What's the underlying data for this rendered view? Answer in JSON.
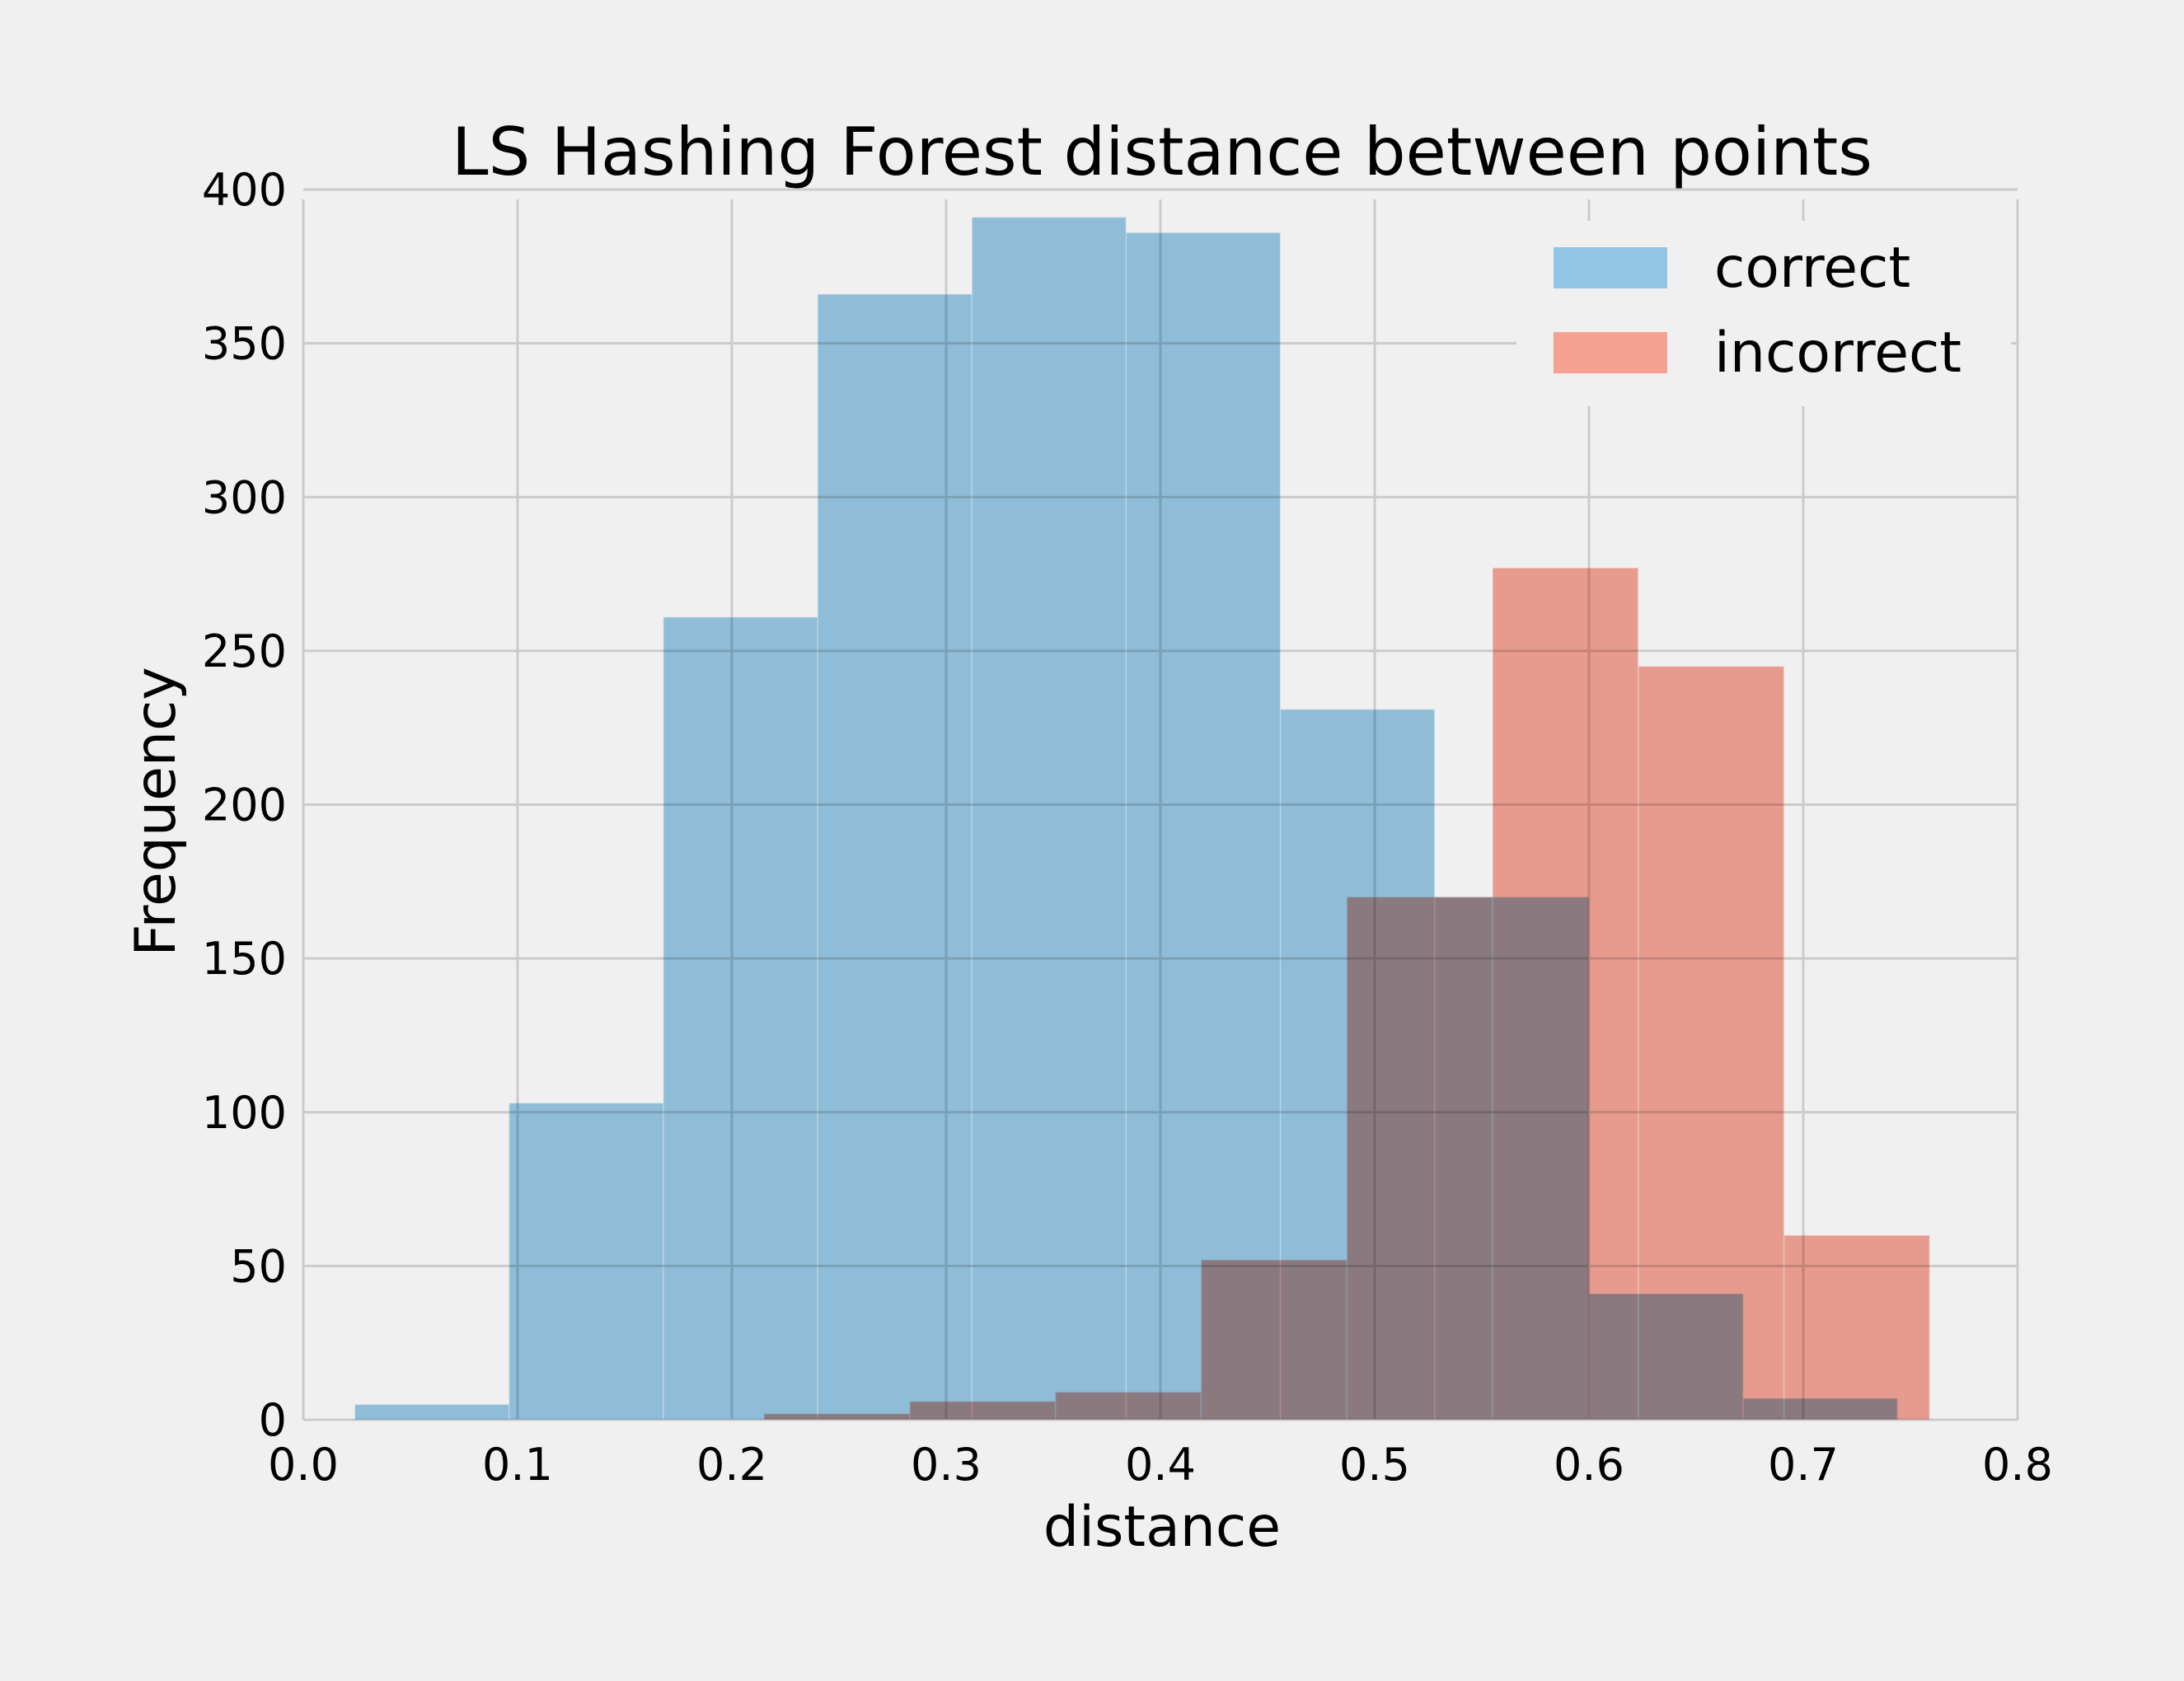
{
  "chart_data": {
    "type": "bar",
    "title": "LS Hashing Forest distance between points",
    "xlabel": "distance",
    "ylabel": "Frequency",
    "xlim": [
      0.0,
      0.8
    ],
    "ylim": [
      0,
      400
    ],
    "xticks": [
      "0.0",
      "0.1",
      "0.2",
      "0.3",
      "0.4",
      "0.5",
      "0.6",
      "0.7",
      "0.8"
    ],
    "yticks": [
      "0",
      "50",
      "100",
      "150",
      "200",
      "250",
      "300",
      "350",
      "400"
    ],
    "grid": true,
    "legend_position": "top-right",
    "series": [
      {
        "name": "correct",
        "color": "#92c6e4",
        "bin_edges": [
          0.024,
          0.096,
          0.168,
          0.24,
          0.312,
          0.384,
          0.456,
          0.528,
          0.6,
          0.672,
          0.744
        ],
        "values": [
          5,
          103,
          261,
          366,
          391,
          386,
          231,
          170,
          41,
          7
        ]
      },
      {
        "name": "incorrect",
        "color": "#f6a091",
        "bin_edges": [
          0.215,
          0.283,
          0.351,
          0.419,
          0.487,
          0.555,
          0.623,
          0.691,
          0.759
        ],
        "values": [
          2,
          6,
          9,
          52,
          170,
          277,
          245,
          60
        ]
      }
    ]
  }
}
